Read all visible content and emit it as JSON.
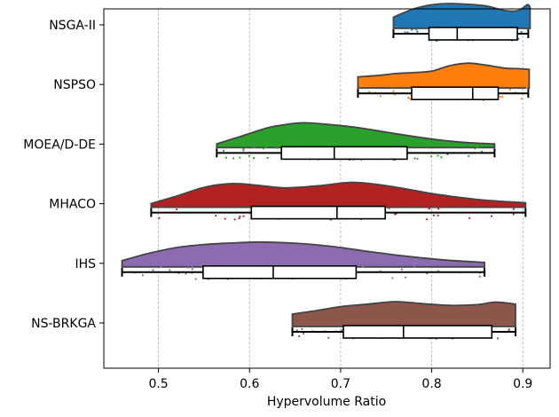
{
  "chart_data": {
    "type": "raincloud",
    "xlabel": "Hypervolume Ratio",
    "xlim": [
      0.44,
      0.93
    ],
    "xticks": [
      0.5,
      0.6,
      0.7,
      0.8,
      0.9
    ],
    "xtick_labels": [
      "0.5",
      "0.6",
      "0.7",
      "0.8",
      "0.9"
    ],
    "grid": "x-only, dashed",
    "series": [
      {
        "name": "NSGA-II",
        "color": "#1f77b4",
        "whisker": [
          0.758,
          0.906
        ],
        "q1": 0.797,
        "median": 0.828,
        "q3": 0.894,
        "density": [
          [
            0.758,
            0.45
          ],
          [
            0.78,
            0.78
          ],
          [
            0.8,
            0.95
          ],
          [
            0.82,
            1.0
          ],
          [
            0.84,
            0.97
          ],
          [
            0.86,
            0.9
          ],
          [
            0.88,
            0.72
          ],
          [
            0.895,
            0.72
          ],
          [
            0.905,
            0.95
          ],
          [
            0.908,
            0.85
          ]
        ]
      },
      {
        "name": "NSPSO",
        "color": "#ff7f0e",
        "whisker": [
          0.719,
          0.906
        ],
        "q1": 0.778,
        "median": 0.845,
        "q3": 0.873,
        "density": [
          [
            0.719,
            0.45
          ],
          [
            0.74,
            0.5
          ],
          [
            0.76,
            0.58
          ],
          [
            0.78,
            0.62
          ],
          [
            0.8,
            0.68
          ],
          [
            0.82,
            0.9
          ],
          [
            0.84,
            1.0
          ],
          [
            0.86,
            0.92
          ],
          [
            0.88,
            0.8
          ],
          [
            0.895,
            0.78
          ],
          [
            0.907,
            0.75
          ]
        ]
      },
      {
        "name": "MOEA/D-DE",
        "color": "#2ca02c",
        "whisker": [
          0.564,
          0.869
        ],
        "q1": 0.635,
        "median": 0.693,
        "q3": 0.773,
        "density": [
          [
            0.564,
            0.15
          ],
          [
            0.59,
            0.45
          ],
          [
            0.62,
            0.8
          ],
          [
            0.64,
            0.93
          ],
          [
            0.66,
            1.0
          ],
          [
            0.69,
            0.92
          ],
          [
            0.72,
            0.8
          ],
          [
            0.75,
            0.62
          ],
          [
            0.78,
            0.45
          ],
          [
            0.81,
            0.3
          ],
          [
            0.84,
            0.2
          ],
          [
            0.869,
            0.15
          ]
        ]
      },
      {
        "name": "MHACO",
        "color": "#b22222",
        "whisker": [
          0.492,
          0.903
        ],
        "q1": 0.602,
        "median": 0.696,
        "q3": 0.749,
        "density": [
          [
            0.492,
            0.15
          ],
          [
            0.52,
            0.45
          ],
          [
            0.55,
            0.8
          ],
          [
            0.58,
            0.95
          ],
          [
            0.61,
            0.88
          ],
          [
            0.64,
            0.78
          ],
          [
            0.68,
            0.88
          ],
          [
            0.71,
            1.0
          ],
          [
            0.74,
            0.92
          ],
          [
            0.77,
            0.75
          ],
          [
            0.8,
            0.55
          ],
          [
            0.83,
            0.4
          ],
          [
            0.86,
            0.28
          ],
          [
            0.903,
            0.18
          ]
        ]
      },
      {
        "name": "IHS",
        "color": "#8c6bb1",
        "whisker": [
          0.46,
          0.858
        ],
        "q1": 0.549,
        "median": 0.626,
        "q3": 0.717,
        "density": [
          [
            0.46,
            0.25
          ],
          [
            0.49,
            0.55
          ],
          [
            0.52,
            0.78
          ],
          [
            0.55,
            0.9
          ],
          [
            0.58,
            0.96
          ],
          [
            0.61,
            1.0
          ],
          [
            0.64,
            0.97
          ],
          [
            0.67,
            0.9
          ],
          [
            0.7,
            0.78
          ],
          [
            0.73,
            0.62
          ],
          [
            0.76,
            0.48
          ],
          [
            0.79,
            0.36
          ],
          [
            0.82,
            0.26
          ],
          [
            0.858,
            0.18
          ]
        ]
      },
      {
        "name": "NS-BRKGA",
        "color": "#8c564b",
        "whisker": [
          0.647,
          0.892
        ],
        "q1": 0.703,
        "median": 0.769,
        "q3": 0.866,
        "density": [
          [
            0.647,
            0.5
          ],
          [
            0.67,
            0.62
          ],
          [
            0.7,
            0.8
          ],
          [
            0.73,
            0.9
          ],
          [
            0.76,
            1.0
          ],
          [
            0.79,
            0.92
          ],
          [
            0.82,
            0.85
          ],
          [
            0.85,
            0.88
          ],
          [
            0.87,
            0.98
          ],
          [
            0.892,
            0.9
          ]
        ]
      }
    ]
  }
}
